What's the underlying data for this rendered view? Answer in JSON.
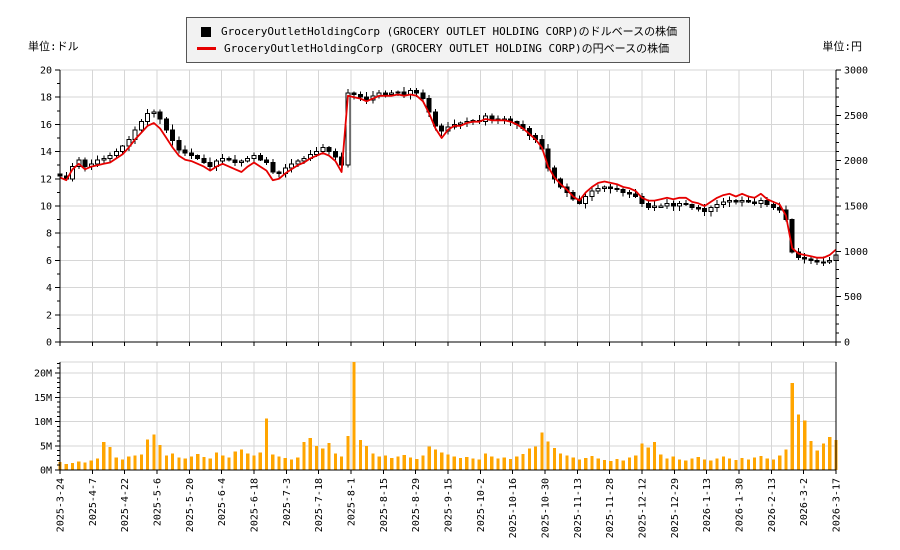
{
  "units": {
    "left": "単位:ドル",
    "right": "単位:円"
  },
  "legend": {
    "series": [
      {
        "marker": "square",
        "color": "#000000",
        "label": "GroceryOutletHoldingCorp (GROCERY OUTLET HOLDING CORP)のドルベースの株価"
      },
      {
        "marker": "line",
        "color": "#e60000",
        "label": "GroceryOutletHoldingCorp (GROCERY OUTLET HOLDING CORP)の円ベースの株価"
      }
    ]
  },
  "chart_data": {
    "type": "candlestick+line+bar",
    "x_tick_labels": [
      "2025-3-24",
      "2025-4-7",
      "2025-4-22",
      "2025-5-6",
      "2025-5-20",
      "2025-6-4",
      "2025-6-18",
      "2025-7-3",
      "2025-7-18",
      "2025-8-1",
      "2025-8-15",
      "2025-8-29",
      "2025-9-15",
      "2025-10-2",
      "2025-10-16",
      "2025-10-30",
      "2025-11-13",
      "2025-11-28",
      "2025-12-12",
      "2025-12-29",
      "2026-1-13",
      "2026-1-30",
      "2026-2-13",
      "2026-3-2",
      "2026-3-17"
    ],
    "price_panel": {
      "left_axis": {
        "unit": "単位:ドル",
        "min": 0,
        "max": 20,
        "major_step": 2,
        "minor_step": 1,
        "ticks": [
          0,
          2,
          4,
          6,
          8,
          10,
          12,
          14,
          16,
          18,
          20
        ]
      },
      "right_axis": {
        "unit": "単位:円",
        "min": 0,
        "max": 3000,
        "major_step": 500,
        "minor_step": 100,
        "ticks": [
          0,
          500,
          1000,
          1500,
          2000,
          2500,
          3000
        ]
      },
      "series": [
        {
          "name": "GroceryOutletHoldingCorp (GROCERY OUTLET HOLDING CORP)のドルベースの株価",
          "type": "candlestick",
          "axis": "left",
          "color": "#000000",
          "values": [
            12.2,
            12.0,
            12.9,
            13.4,
            12.9,
            13.1,
            13.4,
            13.5,
            13.7,
            14.0,
            14.4,
            14.9,
            15.6,
            16.2,
            16.8,
            16.9,
            16.4,
            15.6,
            14.8,
            14.1,
            13.9,
            13.7,
            13.5,
            13.2,
            12.9,
            13.3,
            13.5,
            13.4,
            13.2,
            13.3,
            13.5,
            13.7,
            13.4,
            13.2,
            12.5,
            12.4,
            12.8,
            13.1,
            13.3,
            13.5,
            13.8,
            14.0,
            14.3,
            14.0,
            13.6,
            13.0,
            18.3,
            18.2,
            18.0,
            17.8,
            18.1,
            18.3,
            18.2,
            18.3,
            18.4,
            18.2,
            18.5,
            18.3,
            17.9,
            16.9,
            15.9,
            15.5,
            15.8,
            16.0,
            16.1,
            16.2,
            16.3,
            16.2,
            16.6,
            16.4,
            16.3,
            16.4,
            16.2,
            16.0,
            15.7,
            15.2,
            14.9,
            14.2,
            12.8,
            12.0,
            11.4,
            11.0,
            10.5,
            10.2,
            10.7,
            11.1,
            11.3,
            11.4,
            11.3,
            11.2,
            11.0,
            10.9,
            10.7,
            10.2,
            9.9,
            10.0,
            10.0,
            10.2,
            10.0,
            10.2,
            10.1,
            9.9,
            9.8,
            9.6,
            9.9,
            10.1,
            10.3,
            10.4,
            10.3,
            10.4,
            10.3,
            10.2,
            10.4,
            10.1,
            9.9,
            9.7,
            9.0,
            6.6,
            6.2,
            6.1,
            6.0,
            5.9,
            5.9,
            6.0,
            6.4
          ]
        },
        {
          "name": "GroceryOutletHoldingCorp (GROCERY OUTLET HOLDING CORP)の円ベースの株価",
          "type": "line",
          "axis": "right",
          "color": "#e60000",
          "values": [
            1815,
            1785,
            1905,
            1965,
            1905,
            1935,
            1950,
            1965,
            1980,
            2025,
            2070,
            2145,
            2235,
            2310,
            2385,
            2415,
            2355,
            2250,
            2145,
            2055,
            2010,
            1995,
            1965,
            1935,
            1890,
            1935,
            1965,
            1935,
            1905,
            1875,
            1935,
            1980,
            1935,
            1890,
            1785,
            1800,
            1860,
            1905,
            1950,
            1980,
            2025,
            2055,
            2085,
            2055,
            1995,
            1875,
            2715,
            2700,
            2685,
            2655,
            2685,
            2715,
            2715,
            2715,
            2730,
            2715,
            2730,
            2715,
            2655,
            2520,
            2355,
            2250,
            2340,
            2385,
            2385,
            2415,
            2430,
            2430,
            2460,
            2445,
            2445,
            2445,
            2430,
            2400,
            2355,
            2295,
            2235,
            2145,
            1935,
            1815,
            1740,
            1680,
            1605,
            1560,
            1650,
            1710,
            1755,
            1770,
            1755,
            1740,
            1710,
            1695,
            1665,
            1590,
            1560,
            1560,
            1575,
            1590,
            1575,
            1590,
            1590,
            1545,
            1530,
            1500,
            1545,
            1590,
            1620,
            1635,
            1605,
            1635,
            1605,
            1590,
            1635,
            1575,
            1545,
            1515,
            1395,
            1035,
            975,
            960,
            945,
            930,
            930,
            960,
            1020
          ]
        }
      ]
    },
    "volume_panel": {
      "type": "bar",
      "color": "#ffa500",
      "unit": "millions of shares",
      "axis_ticks_labels": [
        "0M",
        "5M",
        "10M",
        "15M",
        "20M"
      ],
      "axis_ticks_values": [
        0,
        5,
        10,
        15,
        20
      ],
      "minor_step": 1,
      "panel_top_value": 22.27,
      "values": [
        1.6,
        1.2,
        1.4,
        1.8,
        1.5,
        2.0,
        2.4,
        5.8,
        4.7,
        2.6,
        2.2,
        2.8,
        3.0,
        3.2,
        6.3,
        7.3,
        5.2,
        3.0,
        3.4,
        2.6,
        2.4,
        2.8,
        3.3,
        2.7,
        2.4,
        3.6,
        3.0,
        2.6,
        3.8,
        4.2,
        3.4,
        3.0,
        3.6,
        10.6,
        3.2,
        2.8,
        2.5,
        2.2,
        2.6,
        5.8,
        6.6,
        5.0,
        4.4,
        5.6,
        3.4,
        2.8,
        7.0,
        22.3,
        6.2,
        5.0,
        3.4,
        2.8,
        3.0,
        2.5,
        2.8,
        3.1,
        2.6,
        2.3,
        3.0,
        4.8,
        4.2,
        3.6,
        3.2,
        2.8,
        2.5,
        2.7,
        2.4,
        2.2,
        3.4,
        2.8,
        2.4,
        2.6,
        2.3,
        2.8,
        3.3,
        4.4,
        4.8,
        7.7,
        5.9,
        4.5,
        3.4,
        3.0,
        2.6,
        2.2,
        2.5,
        2.9,
        2.4,
        2.1,
        1.9,
        2.3,
        2.0,
        2.6,
        3.0,
        5.5,
        4.6,
        5.8,
        3.2,
        2.4,
        2.8,
        2.2,
        2.0,
        2.4,
        2.7,
        2.2,
        2.0,
        2.4,
        2.8,
        2.4,
        2.1,
        2.5,
        2.2,
        2.6,
        2.9,
        2.4,
        2.2,
        3.0,
        4.2,
        17.9,
        11.4,
        10.2,
        6.0,
        4.0,
        5.5,
        6.8,
        6.2
      ]
    }
  },
  "colors": {
    "grid": "#d6d6d6",
    "axis": "#000000",
    "candle_up_fill": "#ffffff",
    "candle_down_fill": "#000000",
    "yen_line": "#e60000",
    "volume_bar": "#ffa500",
    "legend_bg": "#f2f2f2",
    "legend_border": "#555555"
  }
}
